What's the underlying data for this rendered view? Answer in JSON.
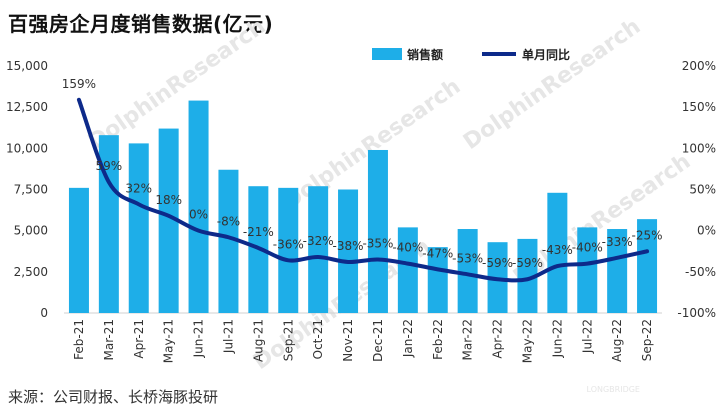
{
  "title": "百强房企月度销售数据(亿元)",
  "source": "来源：公司财报、长桥海豚投研",
  "watermark": {
    "main": "DolphinResearch",
    "brand": "LONGBRIDGE"
  },
  "colors": {
    "bar": "#1eaee8",
    "line": "#0d2a8a"
  },
  "chart_data": {
    "type": "bar",
    "categories": [
      "Feb-21",
      "Mar-21",
      "Apr-21",
      "May-21",
      "Jun-21",
      "Jul-21",
      "Aug-21",
      "Sep-21",
      "Oct-21",
      "Nov-21",
      "Dec-21",
      "Jan-22",
      "Feb-22",
      "Mar-22",
      "Apr-22",
      "May-22",
      "Jun-22",
      "Jul-22",
      "Aug-22",
      "Sep-22"
    ],
    "series": [
      {
        "name": "销售额",
        "type": "bar",
        "axis": "left",
        "values": [
          7600,
          10800,
          10300,
          11200,
          12900,
          8700,
          7700,
          7600,
          7700,
          7500,
          9900,
          5200,
          4000,
          5100,
          4300,
          4500,
          7300,
          5200,
          5100,
          5700
        ]
      },
      {
        "name": "单月同比",
        "type": "line",
        "axis": "right",
        "values": [
          159,
          59,
          32,
          18,
          0,
          -8,
          -21,
          -36,
          -32,
          -38,
          -35,
          -40,
          -47,
          -53,
          -59,
          -59,
          -43,
          -40,
          -33,
          -25
        ],
        "labels": [
          "159%",
          "59%",
          "32%",
          "18%",
          "0%",
          "-8%",
          "-21%",
          "-36%",
          "-32%",
          "-38%",
          "-35%",
          "-40%",
          "-47%",
          "-53%",
          "-59%",
          "-59%",
          "-43%",
          "-40%",
          "-33%",
          "-25%"
        ]
      }
    ],
    "y_left": {
      "range": [
        0,
        15000
      ],
      "ticks": [
        0,
        2500,
        5000,
        7500,
        10000,
        12500,
        15000
      ],
      "tick_labels": [
        "0",
        "2,500",
        "5,000",
        "7,500",
        "10,000",
        "12,500",
        "15,000"
      ]
    },
    "y_right": {
      "range": [
        -100,
        200
      ],
      "ticks": [
        -100,
        -50,
        0,
        50,
        100,
        150,
        200
      ],
      "tick_labels": [
        "-100%",
        "-50%",
        "0%",
        "50%",
        "100%",
        "150%",
        "200%"
      ]
    },
    "legend": {
      "position": "top-right",
      "entries": [
        "销售额",
        "单月同比"
      ]
    },
    "grid": false
  }
}
